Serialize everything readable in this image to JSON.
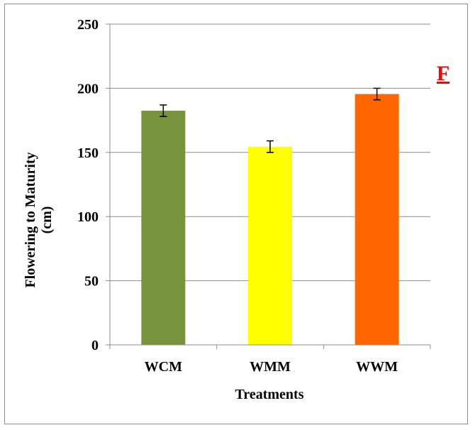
{
  "chart_data": {
    "type": "bar",
    "title": "",
    "panel_label": "F",
    "xlabel": "Treatments",
    "ylabel_lines": [
      "Flowering to Maturity",
      "(cm)"
    ],
    "categories": [
      "WCM",
      "WMM",
      "WWM"
    ],
    "values": [
      182.5,
      154.5,
      195.5
    ],
    "errors": [
      4.5,
      4.5,
      4.5
    ],
    "colors": [
      "#77933c",
      "#ffff00",
      "#ff6600"
    ],
    "error_bar_color": "#000000",
    "ylim": [
      0,
      250
    ],
    "yticks": [
      0,
      50,
      100,
      150,
      200,
      250
    ],
    "grid": true,
    "legend": "none"
  },
  "colors": {
    "panel_label": "#ff0000",
    "gridline": "#8c8c8c",
    "frame": "#8c8c8c"
  }
}
